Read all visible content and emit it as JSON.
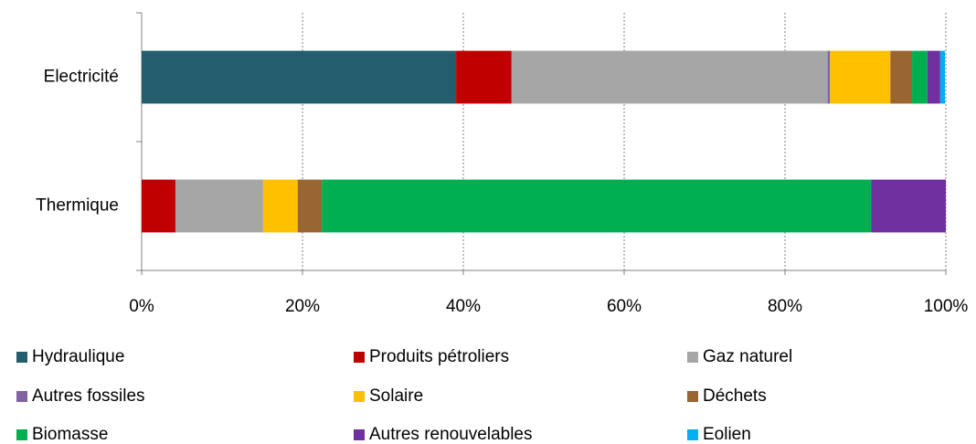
{
  "chart_data": {
    "type": "stacked-bar-horizontal",
    "categories": [
      "Electricité",
      "Thermique"
    ],
    "series": [
      {
        "name": "Hydraulique",
        "color": "#245d6c",
        "values": [
          39.1,
          0
        ]
      },
      {
        "name": "Produits pétroliers",
        "color": "#c00000",
        "values": [
          6.9,
          4.2
        ]
      },
      {
        "name": "Gaz naturel",
        "color": "#a6a6a6",
        "values": [
          39.3,
          10.9
        ]
      },
      {
        "name": "Autres fossiles",
        "color": "#8064a2",
        "values": [
          0.3,
          0
        ]
      },
      {
        "name": "Solaire",
        "color": "#ffc000",
        "values": [
          7.5,
          4.3
        ]
      },
      {
        "name": "Déchets",
        "color": "#996633",
        "values": [
          2.7,
          3.0
        ]
      },
      {
        "name": "Biomasse",
        "color": "#00b050",
        "values": [
          1.9,
          68.3
        ]
      },
      {
        "name": "Autres renouvelables",
        "color": "#7030a0",
        "values": [
          1.6,
          9.3
        ]
      },
      {
        "name": "Eolien",
        "color": "#00b0f0",
        "values": [
          0.6,
          0
        ]
      }
    ],
    "xlim": [
      0,
      100
    ],
    "xticks": [
      {
        "value": 0,
        "label": "0%"
      },
      {
        "value": 20,
        "label": "20%"
      },
      {
        "value": 40,
        "label": "40%"
      },
      {
        "value": 60,
        "label": "60%"
      },
      {
        "value": 80,
        "label": "80%"
      },
      {
        "value": 100,
        "label": "100%"
      }
    ],
    "grid": true,
    "legend": "bottom"
  }
}
